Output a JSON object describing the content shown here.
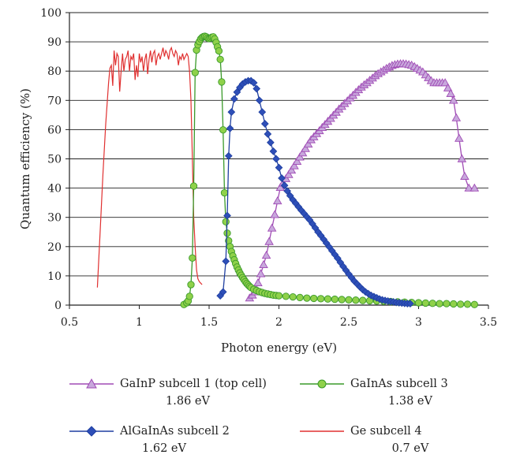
{
  "chart_data": {
    "type": "scatter",
    "title": "",
    "xlabel": "Photon energy (eV)",
    "ylabel": "Quantum efficiency (%)",
    "xlim": [
      0.5,
      3.5
    ],
    "ylim": [
      0,
      100
    ],
    "xticks": [
      "0.5",
      "1",
      "1.5",
      "2",
      "2.5",
      "3",
      "3.5"
    ],
    "yticks": [
      "0",
      "10",
      "20",
      "30",
      "40",
      "50",
      "60",
      "70",
      "80",
      "90",
      "100"
    ],
    "grid": "horizontal",
    "legend_position": "bottom",
    "series": [
      {
        "name": "GaInP subcell 1 (top cell)",
        "legend_sub": "1.86 eV",
        "color": "#a04bb5",
        "fill": "#c8a8dc",
        "marker": "triangle",
        "x": [
          1.79,
          1.81,
          1.83,
          1.85,
          1.87,
          1.89,
          1.91,
          1.93,
          1.95,
          1.97,
          1.99,
          2.01,
          2.03,
          2.05,
          2.07,
          2.09,
          2.11,
          2.13,
          2.15,
          2.17,
          2.19,
          2.21,
          2.23,
          2.25,
          2.27,
          2.29,
          2.31,
          2.33,
          2.35,
          2.37,
          2.39,
          2.41,
          2.43,
          2.45,
          2.47,
          2.49,
          2.51,
          2.53,
          2.55,
          2.57,
          2.59,
          2.61,
          2.63,
          2.65,
          2.67,
          2.69,
          2.71,
          2.73,
          2.75,
          2.77,
          2.79,
          2.81,
          2.83,
          2.85,
          2.87,
          2.89,
          2.91,
          2.93,
          2.95,
          2.97,
          2.99,
          3.01,
          3.03,
          3.05,
          3.07,
          3.09,
          3.11,
          3.13,
          3.15,
          3.17,
          3.19,
          3.21,
          3.23,
          3.25,
          3.27,
          3.29,
          3.31,
          3.33,
          3.36,
          3.4
        ],
        "y": [
          2.4,
          3.4,
          4.5,
          7.6,
          10.7,
          13.8,
          17.0,
          21.7,
          26.3,
          30.9,
          35.6,
          40.2,
          41.7,
          43.2,
          44.6,
          46.1,
          47.6,
          49.1,
          50.6,
          52.0,
          53.5,
          55.0,
          56.5,
          57.5,
          58.6,
          59.6,
          60.7,
          61.7,
          62.8,
          63.8,
          64.9,
          65.9,
          67.0,
          67.9,
          68.9,
          69.8,
          70.8,
          71.7,
          72.7,
          73.6,
          74.5,
          75.3,
          76.0,
          76.8,
          77.6,
          78.4,
          79.1,
          79.7,
          80.3,
          80.9,
          81.4,
          81.9,
          82.2,
          82.4,
          82.5,
          82.5,
          82.4,
          82.2,
          82.0,
          81.5,
          80.9,
          80.3,
          79.7,
          78.7,
          77.7,
          76.7,
          76.0,
          76.0,
          76.0,
          76.0,
          76.0,
          74.2,
          72.3,
          70.0,
          64.0,
          57.0,
          50.0,
          44.0,
          40.0,
          40.0
        ],
        "x_fix": true
      },
      {
        "name": "AlGaInAs subcell 2",
        "legend_sub": "1.62 eV",
        "color": "#1f3fa0",
        "fill": "#2e4fb8",
        "marker": "diamond",
        "x": [
          1.58,
          1.6,
          1.62,
          1.63,
          1.64,
          1.65,
          1.66,
          1.68,
          1.7,
          1.72,
          1.74,
          1.76,
          1.78,
          1.8,
          1.82,
          1.84,
          1.86,
          1.88,
          1.9,
          1.92,
          1.94,
          1.96,
          1.98,
          2.0,
          2.02,
          2.04,
          2.06,
          2.08,
          2.1,
          2.12,
          2.14,
          2.16,
          2.18,
          2.2,
          2.22,
          2.24,
          2.26,
          2.28,
          2.3,
          2.32,
          2.34,
          2.36,
          2.38,
          2.4,
          2.42,
          2.44,
          2.46,
          2.48,
          2.5,
          2.52,
          2.54,
          2.56,
          2.58,
          2.6,
          2.62,
          2.64,
          2.66,
          2.68,
          2.7,
          2.72,
          2.74,
          2.76,
          2.78,
          2.8,
          2.82,
          2.84,
          2.86,
          2.88,
          2.9,
          2.92,
          2.94
        ],
        "y": [
          3.2,
          4.5,
          15.0,
          30.6,
          51.0,
          60.4,
          66.0,
          70.5,
          72.8,
          74.4,
          75.6,
          76.3,
          76.7,
          76.7,
          76.0,
          74.0,
          70.0,
          66.0,
          62.0,
          58.5,
          55.6,
          52.6,
          50.0,
          47.0,
          43.4,
          40.9,
          39.0,
          37.4,
          36.0,
          34.8,
          33.6,
          32.4,
          31.3,
          30.2,
          29.1,
          27.8,
          26.4,
          25.0,
          23.8,
          22.5,
          21.2,
          19.9,
          18.6,
          17.3,
          16.0,
          14.6,
          13.2,
          11.9,
          10.6,
          9.4,
          8.2,
          7.2,
          6.2,
          5.3,
          4.5,
          3.9,
          3.3,
          2.9,
          2.5,
          2.1,
          1.8,
          1.6,
          1.4,
          1.2,
          1.1,
          0.9,
          0.8,
          0.7,
          0.6,
          0.5,
          0.5
        ]
      },
      {
        "name": "GaInAs subcell 3",
        "legend_sub": "1.38 eV",
        "color": "#3a9a2a",
        "fill": "#8fd14a",
        "marker": "circle",
        "x": [
          1.32,
          1.34,
          1.35,
          1.36,
          1.37,
          1.38,
          1.39,
          1.4,
          1.41,
          1.42,
          1.43,
          1.44,
          1.45,
          1.46,
          1.47,
          1.48,
          1.49,
          1.5,
          1.51,
          1.52,
          1.53,
          1.54,
          1.55,
          1.56,
          1.57,
          1.58,
          1.59,
          1.6,
          1.61,
          1.62,
          1.63,
          1.64,
          1.65,
          1.66,
          1.67,
          1.68,
          1.69,
          1.7,
          1.71,
          1.72,
          1.73,
          1.74,
          1.75,
          1.76,
          1.77,
          1.78,
          1.79,
          1.8,
          1.82,
          1.84,
          1.86,
          1.88,
          1.9,
          1.92,
          1.94,
          1.96,
          1.98,
          2.0,
          2.05,
          2.1,
          2.15,
          2.2,
          2.25,
          2.3,
          2.35,
          2.4,
          2.45,
          2.5,
          2.55,
          2.6,
          2.65,
          2.7,
          2.75,
          2.8,
          2.85,
          2.9,
          2.95,
          3.0,
          3.05,
          3.1,
          3.15,
          3.2,
          3.25,
          3.3,
          3.35,
          3.4
        ],
        "y": [
          0.2,
          0.8,
          1.4,
          3.0,
          7.0,
          16.1,
          40.7,
          79.5,
          87.2,
          89.0,
          90.1,
          91.0,
          91.5,
          91.8,
          91.9,
          91.7,
          91.3,
          91.1,
          91.3,
          91.6,
          91.7,
          91.0,
          89.8,
          88.3,
          86.9,
          84.0,
          76.3,
          59.9,
          38.4,
          28.5,
          24.6,
          22.0,
          20.0,
          18.3,
          16.8,
          15.5,
          14.2,
          13.0,
          12.0,
          11.0,
          10.2,
          9.4,
          8.7,
          8.0,
          7.4,
          6.9,
          6.4,
          6.0,
          5.4,
          5.0,
          4.6,
          4.3,
          4.0,
          3.8,
          3.6,
          3.4,
          3.3,
          3.2,
          3.0,
          2.8,
          2.6,
          2.4,
          2.3,
          2.2,
          2.1,
          2.0,
          1.9,
          1.8,
          1.7,
          1.6,
          1.5,
          1.4,
          1.3,
          1.2,
          1.1,
          1.0,
          0.9,
          0.8,
          0.7,
          0.6,
          0.5,
          0.5,
          0.4,
          0.3,
          0.3,
          0.2
        ]
      },
      {
        "name": "Ge subcell 4",
        "legend_sub": "0.7 eV",
        "color": "#e03030",
        "marker": "line",
        "x": [
          0.7,
          0.72,
          0.74,
          0.76,
          0.78,
          0.79,
          0.8,
          0.81,
          0.82,
          0.83,
          0.84,
          0.85,
          0.86,
          0.87,
          0.88,
          0.89,
          0.9,
          0.91,
          0.92,
          0.93,
          0.94,
          0.95,
          0.96,
          0.97,
          0.98,
          0.99,
          1.0,
          1.01,
          1.02,
          1.03,
          1.04,
          1.05,
          1.06,
          1.07,
          1.08,
          1.09,
          1.1,
          1.11,
          1.12,
          1.13,
          1.14,
          1.15,
          1.16,
          1.17,
          1.18,
          1.19,
          1.2,
          1.21,
          1.22,
          1.23,
          1.24,
          1.25,
          1.26,
          1.27,
          1.28,
          1.29,
          1.3,
          1.31,
          1.32,
          1.33,
          1.34,
          1.35,
          1.36,
          1.37,
          1.38,
          1.39,
          1.4,
          1.41,
          1.42,
          1.43,
          1.44,
          1.45
        ],
        "y": [
          6.0,
          25.0,
          45.0,
          62.0,
          76.0,
          81.0,
          82.0,
          75.0,
          87.0,
          82.0,
          86.0,
          85.0,
          73.0,
          80.0,
          86.0,
          80.0,
          84.0,
          85.0,
          87.0,
          80.0,
          85.0,
          84.0,
          86.0,
          77.0,
          82.0,
          78.0,
          86.0,
          83.0,
          85.0,
          80.0,
          84.0,
          86.0,
          79.0,
          84.0,
          87.0,
          83.0,
          86.0,
          87.0,
          82.0,
          85.0,
          86.0,
          84.0,
          86.0,
          88.0,
          85.0,
          87.0,
          86.0,
          84.0,
          87.0,
          88.0,
          86.0,
          85.0,
          87.0,
          86.0,
          82.0,
          85.0,
          84.0,
          86.0,
          84.0,
          85.0,
          86.0,
          85.0,
          80.0,
          70.0,
          50.0,
          30.0,
          20.0,
          12.0,
          9.0,
          8.0,
          7.5,
          7.0
        ]
      }
    ]
  }
}
